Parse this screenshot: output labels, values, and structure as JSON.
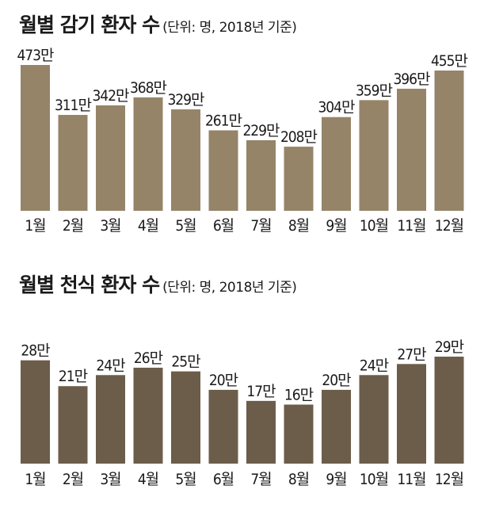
{
  "chart_data": [
    {
      "type": "bar",
      "title": "월별 감기 환자 수",
      "subtitle": "(단위: 명, 2018년 기준)",
      "categories": [
        "1월",
        "2월",
        "3월",
        "4월",
        "5월",
        "6월",
        "7월",
        "8월",
        "9월",
        "10월",
        "11월",
        "12월"
      ],
      "values": [
        473,
        311,
        342,
        368,
        329,
        261,
        229,
        208,
        304,
        359,
        396,
        455
      ],
      "value_labels": [
        "473만",
        "311만",
        "342만",
        "368만",
        "329만",
        "261만",
        "229만",
        "208만",
        "304만",
        "359만",
        "396만",
        "455만"
      ],
      "unit": "만",
      "ylim": [
        0,
        473
      ],
      "grid": false,
      "bar_color": "#958468"
    },
    {
      "type": "bar",
      "title": "월별 천식 환자 수",
      "subtitle": "(단위: 명, 2018년 기준)",
      "categories": [
        "1월",
        "2월",
        "3월",
        "4월",
        "5월",
        "6월",
        "7월",
        "8월",
        "9월",
        "10월",
        "11월",
        "12월"
      ],
      "values": [
        28,
        21,
        24,
        26,
        25,
        20,
        17,
        16,
        20,
        24,
        27,
        29
      ],
      "value_labels": [
        "28만",
        "21만",
        "24만",
        "26만",
        "25만",
        "20만",
        "17만",
        "16만",
        "20만",
        "24만",
        "27만",
        "29만"
      ],
      "unit": "만",
      "ylim": [
        0,
        29
      ],
      "grid": false,
      "bar_color": "#6c5d4b"
    }
  ]
}
